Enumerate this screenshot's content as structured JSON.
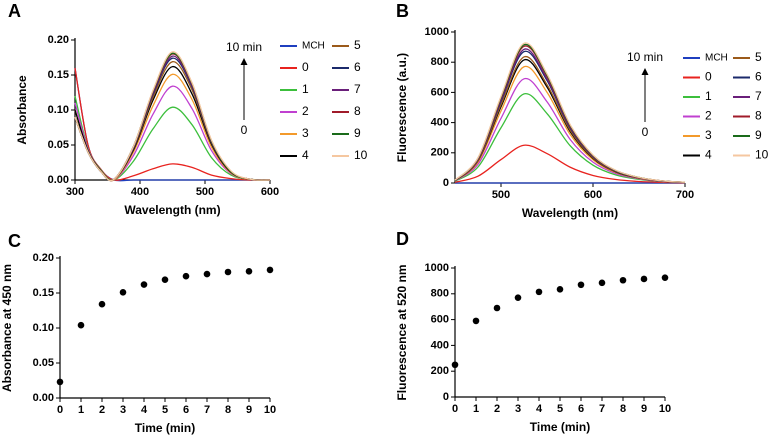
{
  "chart_data": [
    {
      "panel": "A",
      "type": "line",
      "xlabel": "Wavelength (nm)",
      "ylabel": "Absorbance",
      "xlim": [
        300,
        600
      ],
      "xticks": [
        300,
        400,
        500,
        600
      ],
      "ylim": [
        0,
        0.2
      ],
      "yticks": [
        {
          "value": 0,
          "label": "0.00"
        },
        {
          "value": 0.05,
          "label": "0.05"
        },
        {
          "value": 0.1,
          "label": "0.10"
        },
        {
          "value": 0.15,
          "label": "0.15"
        },
        {
          "value": 0.2,
          "label": "0.20"
        }
      ],
      "annotations": [
        "10 min",
        "0"
      ],
      "x": [
        300,
        320,
        340,
        360,
        390,
        420,
        450,
        480,
        510,
        540,
        570,
        600
      ],
      "series": [
        {
          "name": "MCH",
          "color": "#1f3fbf",
          "values": [
            0.16,
            0.05,
            0.015,
            0,
            0,
            0,
            0,
            0,
            0,
            0,
            0,
            0
          ]
        },
        {
          "name": "0",
          "color": "#e8231f",
          "values": [
            0.16,
            0.05,
            0.015,
            0,
            0.006,
            0.016,
            0.023,
            0.018,
            0.007,
            0.002,
            0,
            0
          ]
        },
        {
          "name": "1",
          "color": "#3cbf3c",
          "values": [
            0.12,
            0.045,
            0.014,
            0,
            0.027,
            0.073,
            0.104,
            0.079,
            0.032,
            0.007,
            0.001,
            0
          ]
        },
        {
          "name": "2",
          "color": "#c040d0",
          "values": [
            0.11,
            0.044,
            0.013,
            0,
            0.035,
            0.094,
            0.134,
            0.102,
            0.042,
            0.009,
            0.001,
            0
          ]
        },
        {
          "name": "3",
          "color": "#f39a2b",
          "values": [
            0.1,
            0.042,
            0.013,
            0,
            0.04,
            0.106,
            0.151,
            0.115,
            0.047,
            0.01,
            0.001,
            0
          ]
        },
        {
          "name": "4",
          "color": "#000000",
          "values": [
            0.1,
            0.042,
            0.013,
            0.001,
            0.043,
            0.114,
            0.162,
            0.123,
            0.051,
            0.011,
            0.001,
            0
          ]
        },
        {
          "name": "5",
          "color": "#9b5a1a",
          "values": [
            0.09,
            0.04,
            0.012,
            0.001,
            0.045,
            0.118,
            0.169,
            0.129,
            0.053,
            0.012,
            0.001,
            0
          ]
        },
        {
          "name": "6",
          "color": "#1b2a6b",
          "values": [
            0.09,
            0.04,
            0.012,
            0.001,
            0.046,
            0.122,
            0.174,
            0.133,
            0.054,
            0.012,
            0.001,
            0
          ]
        },
        {
          "name": "7",
          "color": "#6a1f7a",
          "values": [
            0.09,
            0.04,
            0.012,
            0.001,
            0.047,
            0.124,
            0.177,
            0.135,
            0.055,
            0.012,
            0.001,
            0
          ]
        },
        {
          "name": "8",
          "color": "#a01b2a",
          "values": [
            0.09,
            0.04,
            0.012,
            0.001,
            0.048,
            0.126,
            0.18,
            0.137,
            0.056,
            0.012,
            0.001,
            0
          ]
        },
        {
          "name": "9",
          "color": "#1a6b1a",
          "values": [
            0.09,
            0.04,
            0.012,
            0.001,
            0.048,
            0.127,
            0.181,
            0.138,
            0.056,
            0.012,
            0.001,
            0
          ]
        },
        {
          "name": "10",
          "color": "#f5c7a0",
          "values": [
            0.09,
            0.04,
            0.012,
            0.001,
            0.048,
            0.128,
            0.183,
            0.139,
            0.057,
            0.013,
            0.001,
            0
          ]
        }
      ]
    },
    {
      "panel": "B",
      "type": "line",
      "xlabel": "Wavelength (nm)",
      "ylabel": "Fluorescence (a.u.)",
      "xlim": [
        450,
        700
      ],
      "xticks": [
        500,
        600,
        700
      ],
      "ylim": [
        0,
        1000
      ],
      "yticks": [
        0,
        200,
        400,
        600,
        800,
        1000
      ],
      "annotations": [
        "10 min",
        "0"
      ],
      "x": [
        450,
        475,
        500,
        525,
        550,
        575,
        600,
        625,
        650,
        675,
        700
      ],
      "series": [
        {
          "name": "MCH",
          "color": "#1f3fbf",
          "values": [
            0,
            0,
            0,
            0,
            0,
            0,
            0,
            0,
            0,
            0,
            0
          ]
        },
        {
          "name": "0",
          "color": "#e8231f",
          "values": [
            5,
            45,
            155,
            250,
            195,
            105,
            50,
            23,
            10,
            4,
            1
          ]
        },
        {
          "name": "1",
          "color": "#3cbf3c",
          "values": [
            12,
            106,
            366,
            590,
            460,
            248,
            118,
            53,
            24,
            9,
            3
          ]
        },
        {
          "name": "2",
          "color": "#c040d0",
          "values": [
            14,
            124,
            428,
            690,
            538,
            290,
            138,
            62,
            28,
            10,
            3
          ]
        },
        {
          "name": "3",
          "color": "#f39a2b",
          "values": [
            15,
            139,
            477,
            770,
            601,
            323,
            154,
            69,
            31,
            12,
            4
          ]
        },
        {
          "name": "4",
          "color": "#000000",
          "values": [
            16,
            147,
            505,
            815,
            636,
            342,
            163,
            73,
            33,
            12,
            4
          ]
        },
        {
          "name": "5",
          "color": "#9b5a1a",
          "values": [
            17,
            150,
            518,
            835,
            651,
            351,
            167,
            75,
            33,
            13,
            4
          ]
        },
        {
          "name": "6",
          "color": "#1b2a6b",
          "values": [
            17,
            157,
            539,
            870,
            679,
            365,
            174,
            78,
            35,
            13,
            4
          ]
        },
        {
          "name": "7",
          "color": "#6a1f7a",
          "values": [
            18,
            159,
            549,
            885,
            690,
            372,
            177,
            80,
            35,
            13,
            4
          ]
        },
        {
          "name": "8",
          "color": "#a01b2a",
          "values": [
            18,
            163,
            561,
            905,
            706,
            380,
            181,
            81,
            36,
            14,
            5
          ]
        },
        {
          "name": "9",
          "color": "#1a6b1a",
          "values": [
            18,
            165,
            567,
            915,
            714,
            384,
            183,
            82,
            37,
            14,
            5
          ]
        },
        {
          "name": "10",
          "color": "#f5c7a0",
          "values": [
            19,
            167,
            574,
            925,
            722,
            389,
            185,
            83,
            37,
            14,
            5
          ]
        }
      ]
    },
    {
      "panel": "C",
      "type": "scatter",
      "xlabel": "Time (min)",
      "ylabel": "Absorbance at 450 nm",
      "xlim": [
        0,
        10
      ],
      "xticks": [
        0,
        1,
        2,
        3,
        4,
        5,
        6,
        7,
        8,
        9,
        10
      ],
      "ylim": [
        0,
        0.2
      ],
      "yticks": [
        {
          "value": 0,
          "label": "0.00"
        },
        {
          "value": 0.05,
          "label": "0.05"
        },
        {
          "value": 0.1,
          "label": "0.10"
        },
        {
          "value": 0.15,
          "label": "0.15"
        },
        {
          "value": 0.2,
          "label": "0.20"
        }
      ],
      "color": "#000000",
      "x": [
        0,
        1,
        2,
        3,
        4,
        5,
        6,
        7,
        8,
        9,
        10
      ],
      "values": [
        0.023,
        0.104,
        0.134,
        0.151,
        0.162,
        0.169,
        0.174,
        0.177,
        0.18,
        0.181,
        0.183
      ]
    },
    {
      "panel": "D",
      "type": "scatter",
      "xlabel": "Time (min)",
      "ylabel": "Fluorescence at 520 nm",
      "xlim": [
        0,
        10
      ],
      "xticks": [
        0,
        1,
        2,
        3,
        4,
        5,
        6,
        7,
        8,
        9,
        10
      ],
      "ylim": [
        0,
        1000
      ],
      "yticks": [
        0,
        200,
        400,
        600,
        800,
        1000
      ],
      "color": "#000000",
      "x": [
        0,
        1,
        2,
        3,
        4,
        5,
        6,
        7,
        8,
        9,
        10
      ],
      "values": [
        250,
        590,
        690,
        770,
        815,
        835,
        870,
        885,
        905,
        915,
        925
      ]
    }
  ]
}
